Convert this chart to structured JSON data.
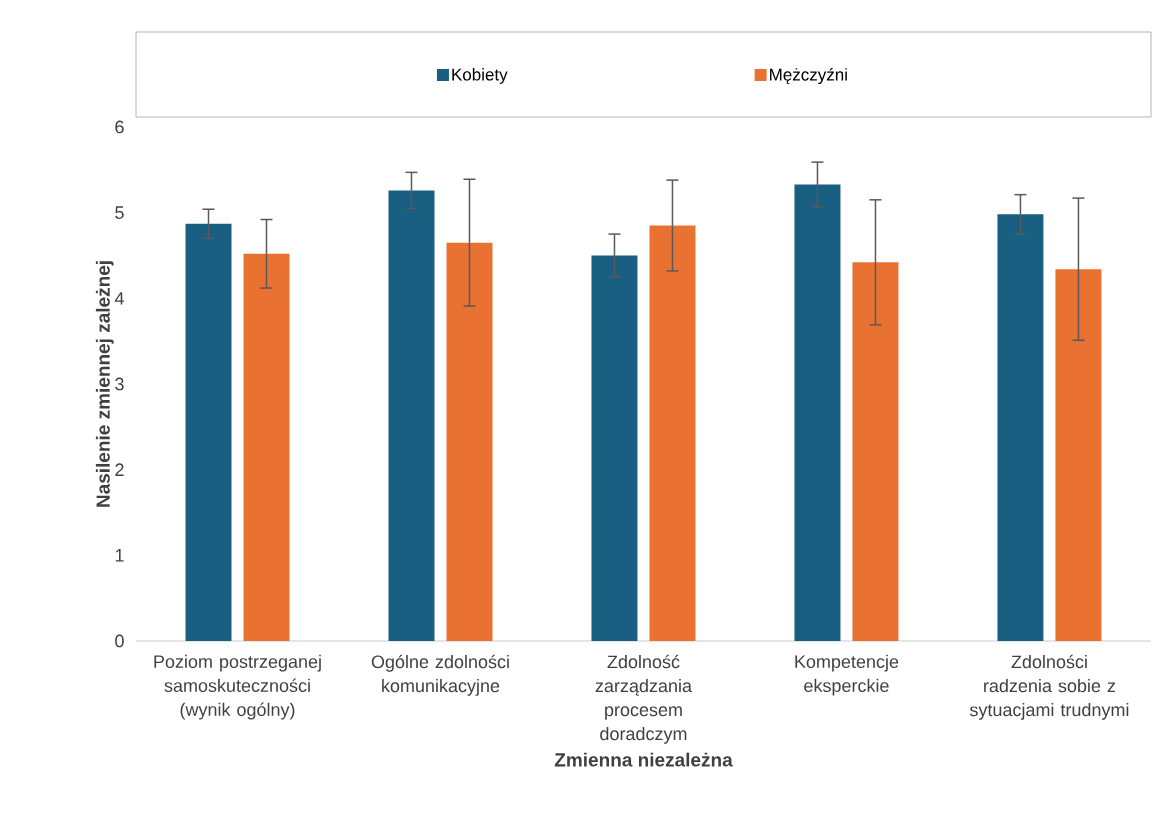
{
  "chart_data": {
    "type": "bar",
    "xlabel": "Zmienna niezależna",
    "ylabel": "Nasilenie zmiennej zależnej",
    "categories": [
      "Poziom postrzeganej samoskuteczności (wynik ogólny)",
      "Ogólne zdolności komunikacyjne",
      "Zdolność zarządzania procesem doradczym",
      "Kompetencje eksperckie",
      "Zdolności radzenia sobie z sytuacjami trudnymi"
    ],
    "series": [
      {
        "name": "Kobiety",
        "color": "#185f82",
        "values": [
          4.87,
          5.26,
          4.5,
          5.33,
          4.98
        ],
        "errors": [
          0.17,
          0.21,
          0.25,
          0.26,
          0.23
        ]
      },
      {
        "name": "Mężczyźni",
        "color": "#e97132",
        "values": [
          4.52,
          4.65,
          4.85,
          4.42,
          4.34
        ],
        "errors": [
          0.4,
          0.74,
          0.53,
          0.73,
          0.83
        ]
      }
    ],
    "ylim": [
      0,
      6
    ],
    "yticks": [
      0,
      1,
      2,
      3,
      4,
      5,
      6
    ],
    "grid": false,
    "legend": "top"
  }
}
